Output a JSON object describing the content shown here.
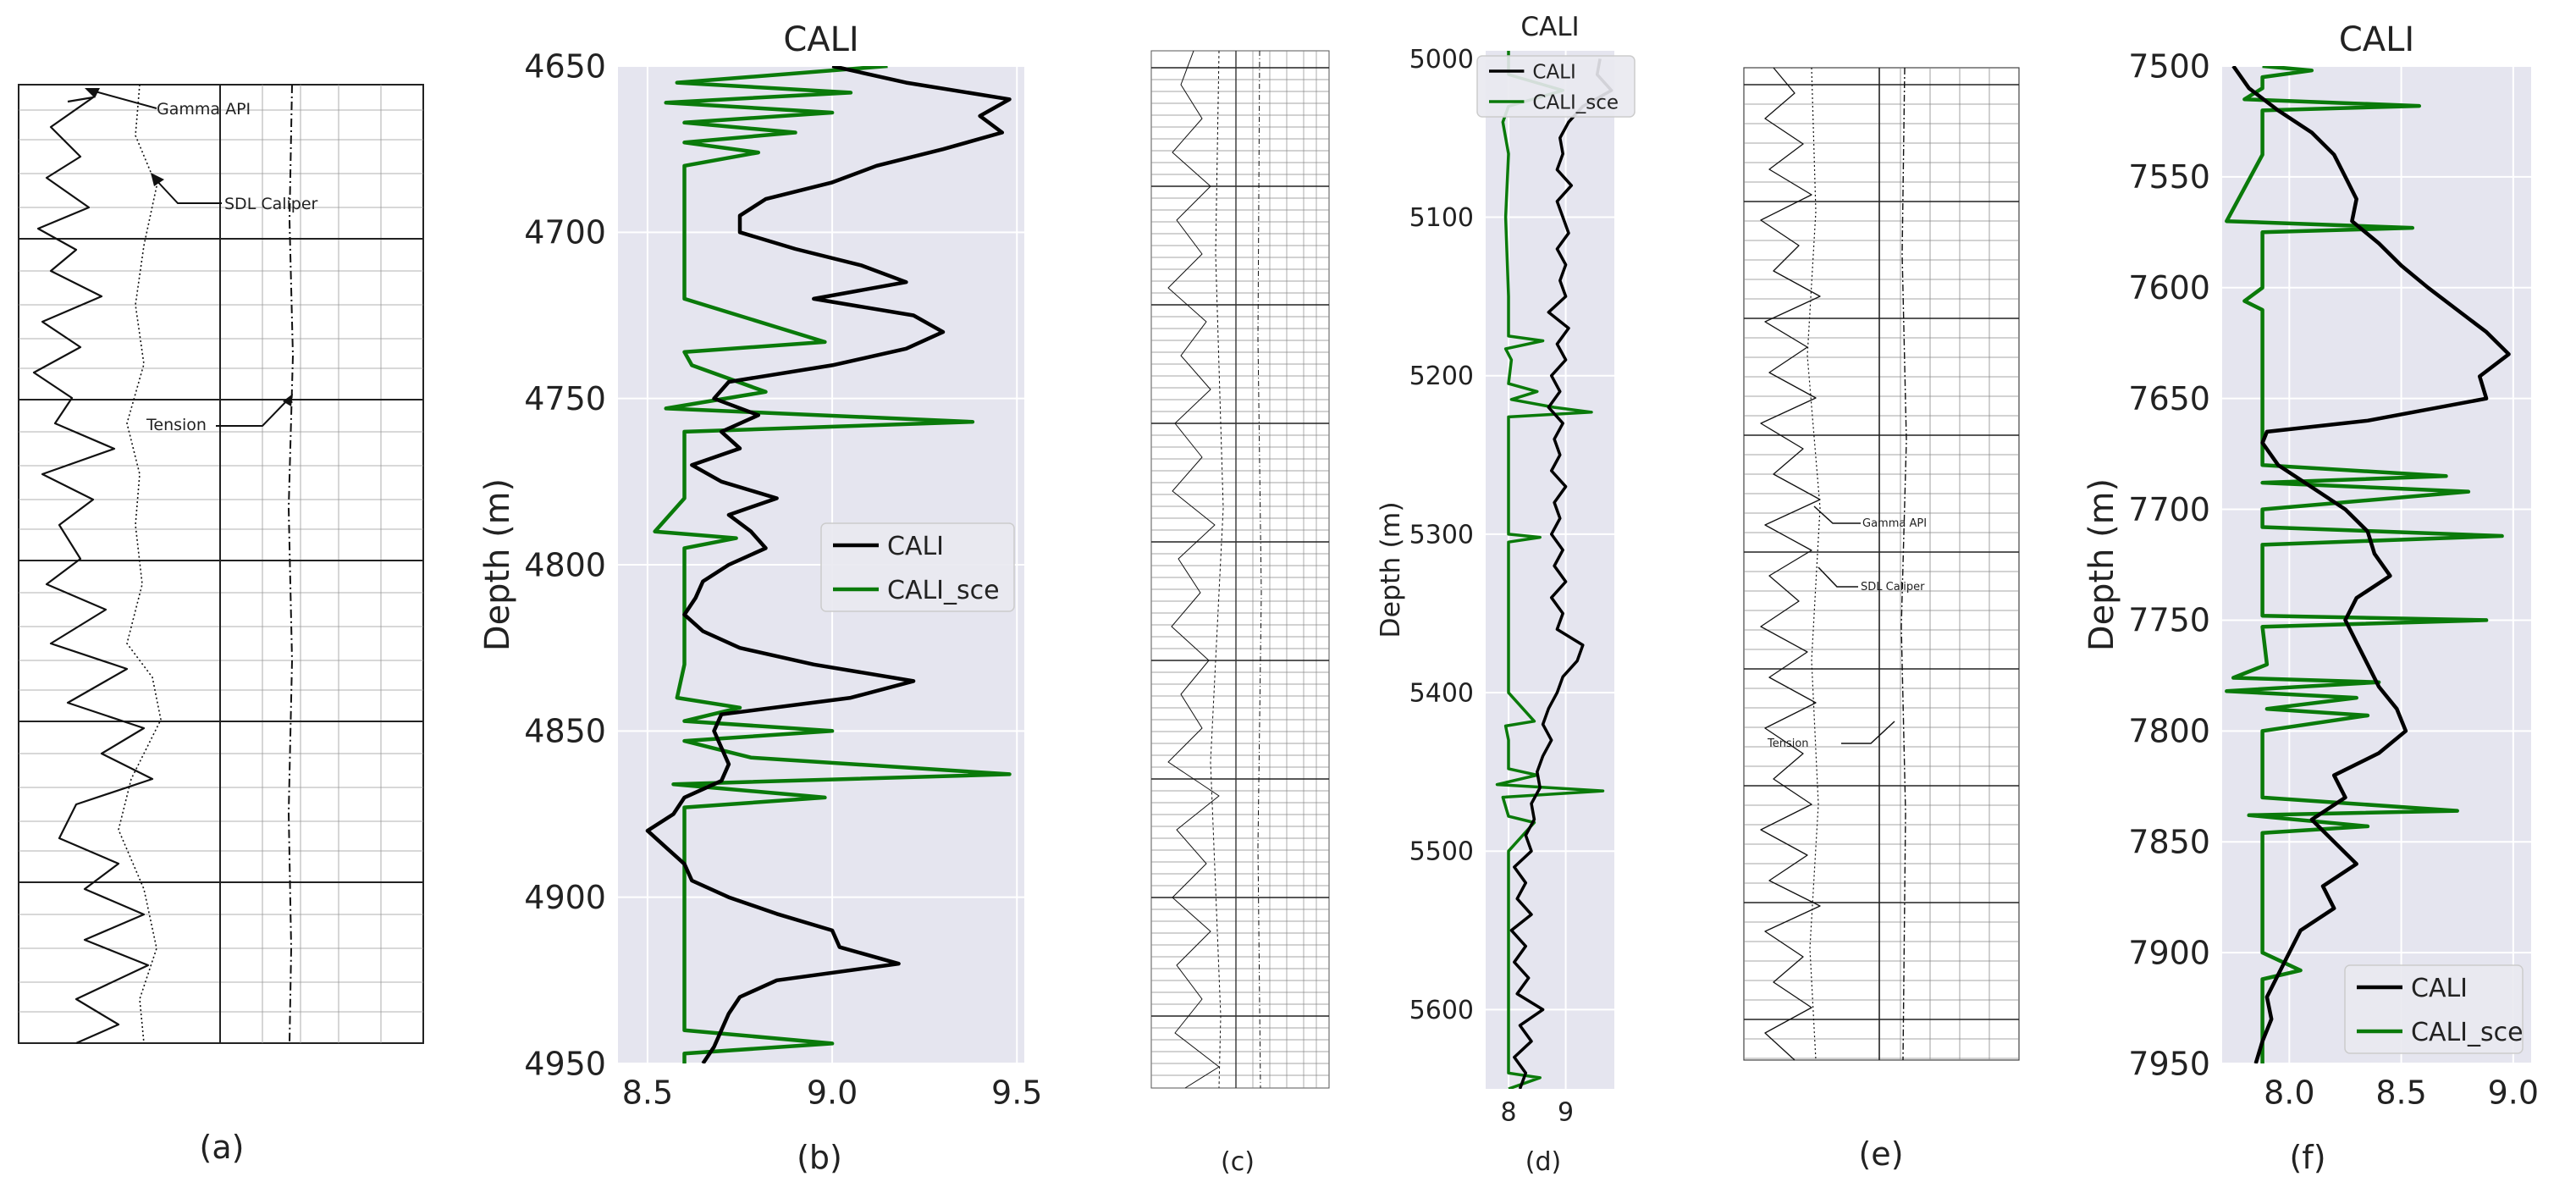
{
  "figure": {
    "scan_annotations": {
      "gamma": "Gamma API",
      "sdl": "SDL Caliper",
      "tension": "Tension"
    },
    "panel_labels": [
      "(a)",
      "(b)",
      "(c)",
      "(d)",
      "(e)",
      "(f)"
    ]
  },
  "chart_data": [
    {
      "panel": "(b)",
      "type": "line",
      "title": "CALI",
      "xlabel": "",
      "ylabel": "Depth (m)",
      "xlim": [
        8.42,
        9.52
      ],
      "ylim": [
        4950,
        4650
      ],
      "xticks": [
        8.5,
        9.0,
        9.5
      ],
      "yticks": [
        4650,
        4700,
        4750,
        4800,
        4850,
        4900,
        4950
      ],
      "legend": {
        "position": "center-right",
        "entries": [
          "CALI",
          "CALI_sce"
        ]
      },
      "series": [
        {
          "name": "CALI",
          "color": "#000000",
          "depth": [
            4650,
            4655,
            4660,
            4665,
            4670,
            4675,
            4680,
            4685,
            4690,
            4695,
            4700,
            4705,
            4710,
            4715,
            4720,
            4725,
            4730,
            4735,
            4740,
            4745,
            4750,
            4755,
            4760,
            4765,
            4770,
            4775,
            4780,
            4785,
            4790,
            4795,
            4800,
            4805,
            4810,
            4815,
            4820,
            4825,
            4830,
            4835,
            4840,
            4845,
            4850,
            4855,
            4860,
            4865,
            4870,
            4875,
            4880,
            4885,
            4890,
            4895,
            4900,
            4905,
            4910,
            4915,
            4920,
            4925,
            4930,
            4935,
            4940,
            4945,
            4950
          ],
          "values": [
            9.0,
            9.2,
            9.48,
            9.4,
            9.46,
            9.3,
            9.12,
            9.0,
            8.82,
            8.75,
            8.75,
            8.9,
            9.08,
            9.2,
            8.95,
            9.22,
            9.3,
            9.2,
            9.0,
            8.72,
            8.68,
            8.8,
            8.7,
            8.75,
            8.62,
            8.7,
            8.85,
            8.72,
            8.78,
            8.82,
            8.72,
            8.65,
            8.63,
            8.6,
            8.65,
            8.75,
            8.95,
            9.22,
            9.05,
            8.7,
            8.68,
            8.7,
            8.72,
            8.7,
            8.6,
            8.57,
            8.5,
            8.55,
            8.6,
            8.62,
            8.72,
            8.85,
            9.0,
            9.02,
            9.18,
            8.85,
            8.75,
            8.72,
            8.7,
            8.68,
            8.65
          ]
        },
        {
          "name": "CALI_sce",
          "color": "#0a7a0a",
          "depth": [
            4650,
            4655,
            4658,
            4661,
            4664,
            4667,
            4670,
            4673,
            4676,
            4680,
            4685,
            4690,
            4700,
            4710,
            4720,
            4733,
            4736,
            4740,
            4748,
            4753,
            4757,
            4760,
            4770,
            4780,
            4790,
            4792,
            4795,
            4800,
            4810,
            4820,
            4830,
            4840,
            4843,
            4847,
            4850,
            4853,
            4858,
            4863,
            4866,
            4870,
            4873,
            4876,
            4880,
            4900,
            4920,
            4940,
            4944,
            4947,
            4950
          ],
          "values": [
            9.15,
            8.58,
            9.05,
            8.55,
            9.0,
            8.6,
            8.9,
            8.6,
            8.8,
            8.6,
            8.6,
            8.6,
            8.6,
            8.6,
            8.6,
            8.98,
            8.6,
            8.62,
            8.82,
            8.55,
            9.38,
            8.6,
            8.6,
            8.6,
            8.52,
            8.74,
            8.6,
            8.6,
            8.6,
            8.6,
            8.6,
            8.58,
            8.75,
            8.6,
            9.0,
            8.6,
            8.78,
            9.48,
            8.57,
            8.98,
            8.6,
            8.6,
            8.6,
            8.6,
            8.6,
            8.6,
            9.0,
            8.6,
            8.6
          ]
        }
      ]
    },
    {
      "panel": "(d)",
      "type": "line",
      "title": "CALI",
      "xlabel": "",
      "ylabel": "Depth (m)",
      "xlim": [
        7.6,
        9.85
      ],
      "ylim": [
        5650,
        4995
      ],
      "xticks": [
        8,
        9
      ],
      "yticks": [
        5000,
        5100,
        5200,
        5300,
        5400,
        5500,
        5600
      ],
      "legend": {
        "position": "top-right",
        "entries": [
          "CALI",
          "CALI_sce"
        ]
      },
      "series": [
        {
          "name": "CALI",
          "color": "#000000",
          "depth": [
            5000,
            5010,
            5020,
            5030,
            5040,
            5050,
            5060,
            5070,
            5080,
            5090,
            5100,
            5110,
            5120,
            5130,
            5140,
            5150,
            5160,
            5170,
            5180,
            5190,
            5200,
            5210,
            5220,
            5230,
            5240,
            5250,
            5260,
            5270,
            5280,
            5290,
            5300,
            5310,
            5320,
            5330,
            5340,
            5350,
            5360,
            5370,
            5380,
            5390,
            5400,
            5410,
            5420,
            5430,
            5440,
            5450,
            5460,
            5470,
            5480,
            5490,
            5500,
            5510,
            5520,
            5530,
            5540,
            5550,
            5560,
            5570,
            5580,
            5590,
            5600,
            5610,
            5620,
            5630,
            5640,
            5650
          ],
          "values": [
            9.6,
            9.55,
            9.8,
            9.3,
            9.05,
            8.9,
            8.95,
            8.85,
            9.1,
            8.85,
            8.95,
            9.05,
            8.85,
            9.0,
            8.9,
            9.0,
            8.7,
            9.05,
            8.85,
            9.0,
            8.75,
            8.9,
            8.7,
            8.95,
            8.8,
            8.9,
            8.75,
            9.0,
            8.8,
            8.9,
            8.75,
            8.95,
            8.8,
            9.0,
            8.75,
            8.95,
            8.85,
            9.3,
            9.2,
            8.95,
            8.85,
            8.7,
            8.6,
            8.75,
            8.6,
            8.5,
            8.55,
            8.4,
            8.45,
            8.3,
            8.4,
            8.1,
            8.3,
            8.15,
            8.4,
            8.05,
            8.3,
            8.1,
            8.35,
            8.15,
            8.6,
            8.2,
            8.4,
            8.1,
            8.3,
            8.2
          ]
        },
        {
          "name": "CALI_sce",
          "color": "#0a7a0a",
          "depth": [
            4995,
            5010,
            5020,
            5030,
            5040,
            5060,
            5100,
            5150,
            5175,
            5178,
            5183,
            5190,
            5205,
            5210,
            5215,
            5220,
            5223,
            5226,
            5230,
            5240,
            5300,
            5302,
            5305,
            5320,
            5400,
            5418,
            5421,
            5430,
            5440,
            5448,
            5452,
            5458,
            5462,
            5466,
            5478,
            5482,
            5500,
            5600,
            5640,
            5643,
            5650
          ],
          "values": [
            8.0,
            8.0,
            8.95,
            8.0,
            7.9,
            8.0,
            7.95,
            8.0,
            8.0,
            8.6,
            7.95,
            8.05,
            8.0,
            8.5,
            8.05,
            8.8,
            9.45,
            8.0,
            8.0,
            8.0,
            8.0,
            8.55,
            8.0,
            8.0,
            8.0,
            8.45,
            7.95,
            8.0,
            8.0,
            8.0,
            8.5,
            7.8,
            9.65,
            7.9,
            8.0,
            8.45,
            8.0,
            8.0,
            8.0,
            8.55,
            8.0
          ]
        }
      ]
    },
    {
      "panel": "(f)",
      "type": "line",
      "title": "CALI",
      "xlabel": "",
      "ylabel": "Depth (m)",
      "xlim": [
        7.7,
        9.08
      ],
      "ylim": [
        7950,
        7500
      ],
      "xticks": [
        8.0,
        8.5,
        9.0
      ],
      "yticks": [
        7500,
        7550,
        7600,
        7650,
        7700,
        7750,
        7800,
        7850,
        7900,
        7950
      ],
      "legend": {
        "position": "bottom-right",
        "entries": [
          "CALI",
          "CALI_sce"
        ]
      },
      "series": [
        {
          "name": "CALI",
          "color": "#000000",
          "depth": [
            7500,
            7510,
            7520,
            7530,
            7540,
            7550,
            7560,
            7570,
            7580,
            7590,
            7600,
            7610,
            7620,
            7630,
            7640,
            7650,
            7660,
            7665,
            7670,
            7680,
            7690,
            7700,
            7710,
            7720,
            7730,
            7740,
            7750,
            7760,
            7770,
            7780,
            7790,
            7800,
            7810,
            7820,
            7830,
            7840,
            7850,
            7860,
            7870,
            7880,
            7890,
            7900,
            7910,
            7920,
            7930,
            7940,
            7950
          ],
          "values": [
            7.75,
            7.82,
            7.95,
            8.1,
            8.2,
            8.25,
            8.3,
            8.28,
            8.4,
            8.5,
            8.62,
            8.75,
            8.88,
            8.98,
            8.85,
            8.88,
            8.35,
            7.9,
            7.88,
            7.95,
            8.1,
            8.25,
            8.35,
            8.38,
            8.45,
            8.3,
            8.25,
            8.3,
            8.35,
            8.4,
            8.48,
            8.52,
            8.4,
            8.2,
            8.25,
            8.1,
            8.2,
            8.3,
            8.15,
            8.2,
            8.05,
            8.0,
            7.95,
            7.9,
            7.92,
            7.88,
            7.85
          ]
        },
        {
          "name": "CALI_sce",
          "color": "#0a7a0a",
          "depth": [
            7500,
            7502,
            7505,
            7510,
            7515,
            7518,
            7520,
            7525,
            7540,
            7570,
            7573,
            7575,
            7600,
            7606,
            7610,
            7650,
            7680,
            7685,
            7688,
            7692,
            7700,
            7708,
            7712,
            7716,
            7730,
            7748,
            7750,
            7753,
            7770,
            7776,
            7778,
            7782,
            7785,
            7790,
            7793,
            7800,
            7830,
            7836,
            7838,
            7843,
            7846,
            7850,
            7900,
            7908,
            7912,
            7950
          ],
          "values": [
            7.88,
            8.1,
            7.88,
            7.88,
            7.8,
            8.58,
            7.88,
            7.88,
            7.88,
            7.72,
            8.55,
            7.88,
            7.88,
            7.8,
            7.88,
            7.88,
            7.88,
            8.7,
            7.88,
            8.8,
            7.88,
            7.88,
            8.95,
            7.88,
            7.88,
            7.88,
            8.88,
            7.88,
            7.9,
            7.75,
            8.4,
            7.72,
            8.3,
            7.9,
            8.35,
            7.88,
            7.88,
            8.75,
            7.82,
            8.35,
            7.88,
            7.88,
            7.88,
            8.05,
            7.88,
            7.88
          ]
        }
      ]
    }
  ]
}
